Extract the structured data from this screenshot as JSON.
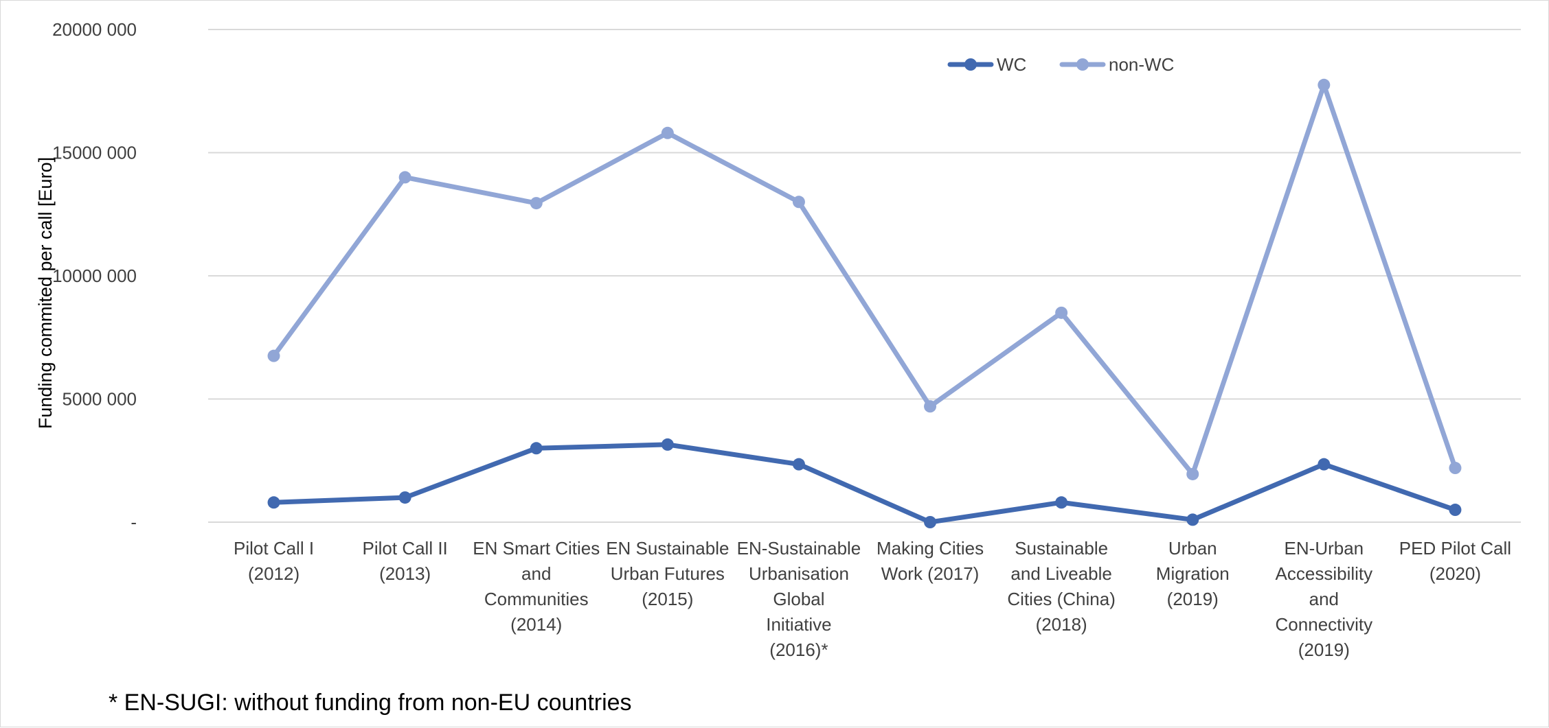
{
  "chart_data": {
    "type": "line",
    "title": "",
    "xlabel": "",
    "ylabel": "Funding commited per call [Euro]",
    "ylim": [
      0,
      20000000
    ],
    "y_ticks": [
      {
        "value": 0,
        "label": "-"
      },
      {
        "value": 5000000,
        "label": "5000 000"
      },
      {
        "value": 10000000,
        "label": "10000 000"
      },
      {
        "value": 15000000,
        "label": "15000 000"
      },
      {
        "value": 20000000,
        "label": "20000 000"
      }
    ],
    "grid": true,
    "legend_position": "top-right",
    "categories": [
      [
        "Pilot Call I",
        "(2012)"
      ],
      [
        "Pilot Call II",
        "(2013)"
      ],
      [
        "EN Smart Cities",
        "and",
        "Communities",
        "(2014)"
      ],
      [
        "EN Sustainable",
        "Urban Futures",
        "(2015)"
      ],
      [
        "EN-Sustainable",
        "Urbanisation",
        "Global",
        "Initiative",
        "(2016)*"
      ],
      [
        "Making Cities",
        "Work (2017)"
      ],
      [
        "Sustainable",
        "and Liveable",
        "Cities (China)",
        "(2018)"
      ],
      [
        "Urban",
        "Migration",
        "(2019)"
      ],
      [
        "EN-Urban",
        "Accessibility",
        "and",
        "Connectivity",
        "(2019)"
      ],
      [
        "PED Pilot Call",
        "(2020)"
      ]
    ],
    "series": [
      {
        "name": "WC",
        "color": "#4169b0",
        "values": [
          800000,
          1000000,
          3000000,
          3150000,
          2350000,
          0,
          800000,
          100000,
          2350000,
          500000
        ]
      },
      {
        "name": "non-WC",
        "color": "#91a6d6",
        "values": [
          6750000,
          14000000,
          12950000,
          15800000,
          13000000,
          4700000,
          8500000,
          1950000,
          17750000,
          2200000
        ]
      }
    ]
  },
  "footnote": "* EN-SUGI: without funding from non-EU countries"
}
